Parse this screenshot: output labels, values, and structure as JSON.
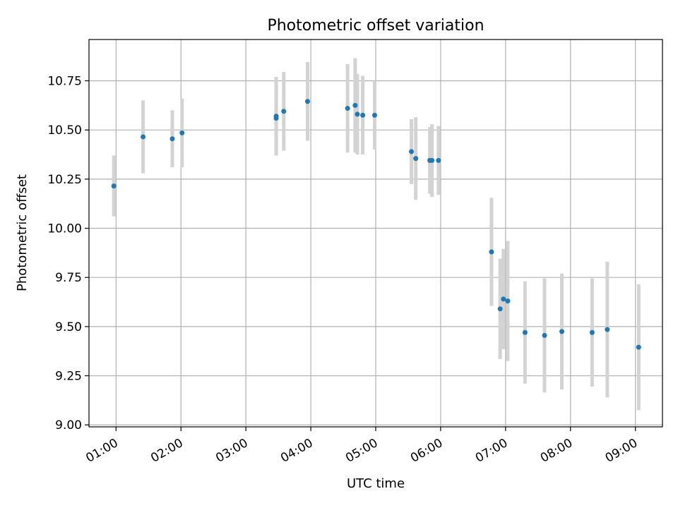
{
  "chart_data": {
    "type": "scatter",
    "title": "Photometric offset variation",
    "xlabel": "UTC time",
    "ylabel": "Photometric offset",
    "x_ticks": [
      "01:00",
      "02:00",
      "03:00",
      "04:00",
      "05:00",
      "06:00",
      "07:00",
      "08:00",
      "09:00"
    ],
    "y_ticks": [
      "9.00",
      "9.25",
      "9.50",
      "9.75",
      "10.00",
      "10.25",
      "10.50",
      "10.75"
    ],
    "xlim": [
      "00:35",
      "09:25"
    ],
    "ylim": [
      8.99,
      10.96
    ],
    "grid": true,
    "colors": {
      "points": "#1f77b4",
      "errorbars": "#d3d3d3",
      "grid": "#b0b0b0"
    },
    "points": [
      {
        "x": "00:58",
        "y": 10.215,
        "err": 0.155
      },
      {
        "x": "01:25",
        "y": 10.465,
        "err": 0.185
      },
      {
        "x": "01:52",
        "y": 10.455,
        "err": 0.145
      },
      {
        "x": "02:01",
        "y": 10.485,
        "err": 0.175
      },
      {
        "x": "03:28",
        "y": 10.57,
        "err": 0.2
      },
      {
        "x": "03:28",
        "y": 10.56,
        "err": 0.19
      },
      {
        "x": "03:35",
        "y": 10.595,
        "err": 0.2
      },
      {
        "x": "03:57",
        "y": 10.645,
        "err": 0.2
      },
      {
        "x": "04:34",
        "y": 10.61,
        "err": 0.225
      },
      {
        "x": "04:41",
        "y": 10.625,
        "err": 0.24
      },
      {
        "x": "04:43",
        "y": 10.58,
        "err": 0.205
      },
      {
        "x": "04:48",
        "y": 10.575,
        "err": 0.2
      },
      {
        "x": "04:59",
        "y": 10.575,
        "err": 0.175
      },
      {
        "x": "05:33",
        "y": 10.39,
        "err": 0.165
      },
      {
        "x": "05:37",
        "y": 10.355,
        "err": 0.21
      },
      {
        "x": "05:50",
        "y": 10.345,
        "err": 0.17
      },
      {
        "x": "05:52",
        "y": 10.345,
        "err": 0.185
      },
      {
        "x": "05:58",
        "y": 10.345,
        "err": 0.175
      },
      {
        "x": "06:47",
        "y": 9.88,
        "err": 0.275
      },
      {
        "x": "06:55",
        "y": 9.59,
        "err": 0.255
      },
      {
        "x": "06:58",
        "y": 9.64,
        "err": 0.255
      },
      {
        "x": "07:02",
        "y": 9.63,
        "err": 0.305
      },
      {
        "x": "07:18",
        "y": 9.47,
        "err": 0.26
      },
      {
        "x": "07:36",
        "y": 9.455,
        "err": 0.29
      },
      {
        "x": "07:52",
        "y": 9.475,
        "err": 0.295
      },
      {
        "x": "08:20",
        "y": 9.47,
        "err": 0.275
      },
      {
        "x": "08:34",
        "y": 9.485,
        "err": 0.345
      },
      {
        "x": "09:03",
        "y": 9.395,
        "err": 0.32
      }
    ]
  }
}
